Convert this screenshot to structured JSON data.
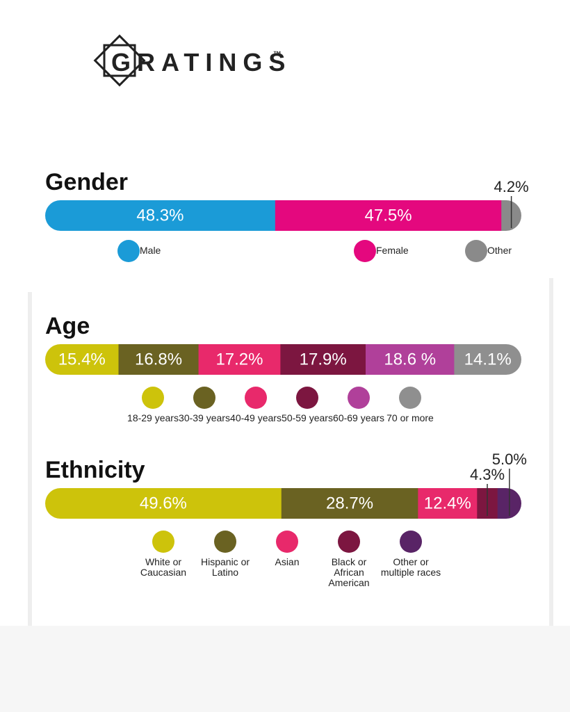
{
  "brand": "GRATINGS",
  "trademark": "™",
  "chart_data": [
    {
      "type": "bar",
      "title": "Gender",
      "categories": [
        "Male",
        "Female",
        "Other"
      ],
      "values": [
        48.3,
        47.5,
        4.2
      ],
      "value_labels": [
        "48.3%",
        "47.5%",
        "4.2%"
      ],
      "colors": [
        "#1b9bd7",
        "#e4087e",
        "#8a8a8a"
      ]
    },
    {
      "type": "bar",
      "title": "Age",
      "categories": [
        "18-29 years",
        "30-39 years",
        "40-49 years",
        "50-59 years",
        "60-69 years",
        "70 or more"
      ],
      "values": [
        15.4,
        16.8,
        17.2,
        17.9,
        18.6,
        14.1
      ],
      "value_labels": [
        "15.4%",
        "16.8%",
        "17.2%",
        "17.9%",
        "18.6 %",
        "14.1%"
      ],
      "colors": [
        "#cdc30b",
        "#6a6222",
        "#e8296b",
        "#7c1640",
        "#b0409a",
        "#8f8f8f"
      ]
    },
    {
      "type": "bar",
      "title": "Ethnicity",
      "categories": [
        "White or Caucasian",
        "Hispanic or Latino",
        "Asian",
        "Black or African American",
        "Other or multiple races"
      ],
      "values": [
        49.6,
        28.7,
        12.4,
        4.3,
        5.0
      ],
      "value_labels": [
        "49.6%",
        "28.7%",
        "12.4%",
        "4.3%",
        "5.0%"
      ],
      "colors": [
        "#cdc30b",
        "#6a6222",
        "#e8296b",
        "#7c1640",
        "#592466"
      ]
    }
  ]
}
